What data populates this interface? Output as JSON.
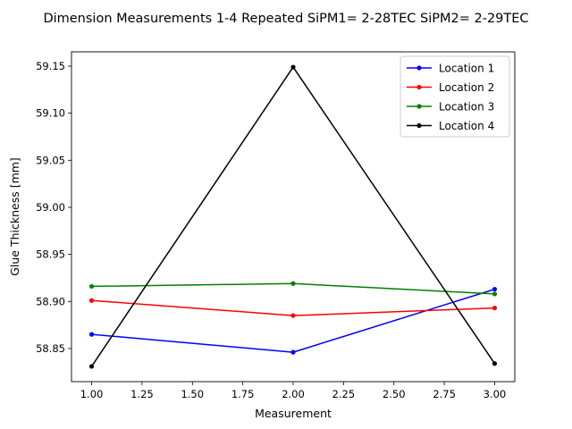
{
  "chart_data": {
    "type": "line",
    "title": "Dimension Measurements 1-4 Repeated SiPM1= 2-28TEC SiPM2= 2-29TEC",
    "xlabel": "Measurement",
    "ylabel": "Glue Thickness [mm]",
    "x": [
      1.0,
      2.0,
      3.0
    ],
    "xlim": [
      0.9,
      3.1
    ],
    "ylim": [
      58.8148,
      59.1652
    ],
    "xticks": [
      "1.00",
      "1.25",
      "1.50",
      "1.75",
      "2.00",
      "2.25",
      "2.50",
      "2.75",
      "3.00"
    ],
    "xtick_values": [
      1.0,
      1.25,
      1.5,
      1.75,
      2.0,
      2.25,
      2.5,
      2.75,
      3.0
    ],
    "yticks": [
      "58.85",
      "58.90",
      "58.95",
      "59.00",
      "59.05",
      "59.10",
      "59.15"
    ],
    "ytick_values": [
      58.85,
      58.9,
      58.95,
      59.0,
      59.05,
      59.1,
      59.15
    ],
    "grid": false,
    "legend_position": "upper right",
    "series": [
      {
        "name": "Location 1",
        "color": "#0000ff",
        "values": [
          58.865,
          58.846,
          58.913
        ]
      },
      {
        "name": "Location 2",
        "color": "#ff0000",
        "values": [
          58.901,
          58.885,
          58.893
        ]
      },
      {
        "name": "Location 3",
        "color": "#008000",
        "values": [
          58.916,
          58.919,
          58.908
        ]
      },
      {
        "name": "Location 4",
        "color": "#000000",
        "values": [
          58.831,
          59.149,
          58.834
        ]
      }
    ]
  }
}
